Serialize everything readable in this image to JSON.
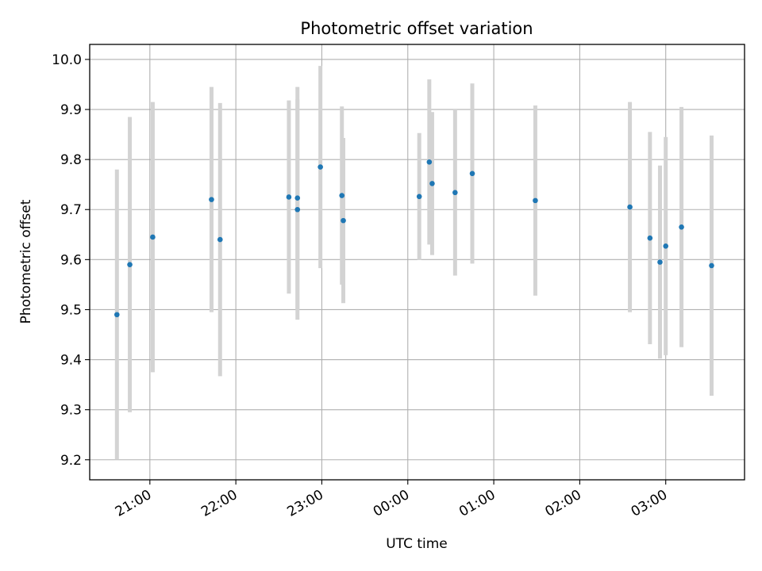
{
  "chart_data": {
    "type": "scatter",
    "title": "Photometric offset variation",
    "xlabel": "UTC time",
    "ylabel": "Photometric offset",
    "x_ticks": [
      "21:00",
      "22:00",
      "23:00",
      "00:00",
      "01:00",
      "02:00",
      "03:00"
    ],
    "y_ticks": [
      "9.2",
      "9.3",
      "9.4",
      "9.5",
      "9.6",
      "9.7",
      "9.8",
      "9.9",
      "10.0"
    ],
    "xlim": [
      "20:18",
      "03:55"
    ],
    "ylim": [
      9.16,
      10.03
    ],
    "grid": true,
    "marker_color": "#1f77b4",
    "errorbar_color": "#d3d3d3",
    "points": [
      {
        "time": "20:37",
        "y": 9.49,
        "yerr": 0.29
      },
      {
        "time": "20:46",
        "y": 9.59,
        "yerr": 0.295
      },
      {
        "time": "21:02",
        "y": 9.645,
        "yerr": 0.27
      },
      {
        "time": "21:43",
        "y": 9.72,
        "yerr": 0.225
      },
      {
        "time": "21:49",
        "y": 9.64,
        "yerr": 0.273
      },
      {
        "time": "22:37",
        "y": 9.725,
        "yerr": 0.193
      },
      {
        "time": "22:43",
        "y": 9.723,
        "yerr": 0.222
      },
      {
        "time": "22:43",
        "y": 9.7,
        "yerr": 0.22
      },
      {
        "time": "22:59",
        "y": 9.785,
        "yerr": 0.202
      },
      {
        "time": "23:14",
        "y": 9.728,
        "yerr": 0.178
      },
      {
        "time": "23:15",
        "y": 9.678,
        "yerr": 0.165
      },
      {
        "time": "00:08",
        "y": 9.726,
        "yerr": 0.127
      },
      {
        "time": "00:15",
        "y": 9.795,
        "yerr": 0.165
      },
      {
        "time": "00:17",
        "y": 9.752,
        "yerr": 0.143
      },
      {
        "time": "00:33",
        "y": 9.734,
        "yerr": 0.166
      },
      {
        "time": "00:45",
        "y": 9.772,
        "yerr": 0.18
      },
      {
        "time": "01:29",
        "y": 9.718,
        "yerr": 0.19
      },
      {
        "time": "02:35",
        "y": 9.705,
        "yerr": 0.21
      },
      {
        "time": "02:49",
        "y": 9.643,
        "yerr": 0.212
      },
      {
        "time": "02:56",
        "y": 9.595,
        "yerr": 0.193
      },
      {
        "time": "03:00",
        "y": 9.627,
        "yerr": 0.218
      },
      {
        "time": "03:11",
        "y": 9.665,
        "yerr": 0.24
      },
      {
        "time": "03:32",
        "y": 9.588,
        "yerr": 0.26
      }
    ]
  }
}
